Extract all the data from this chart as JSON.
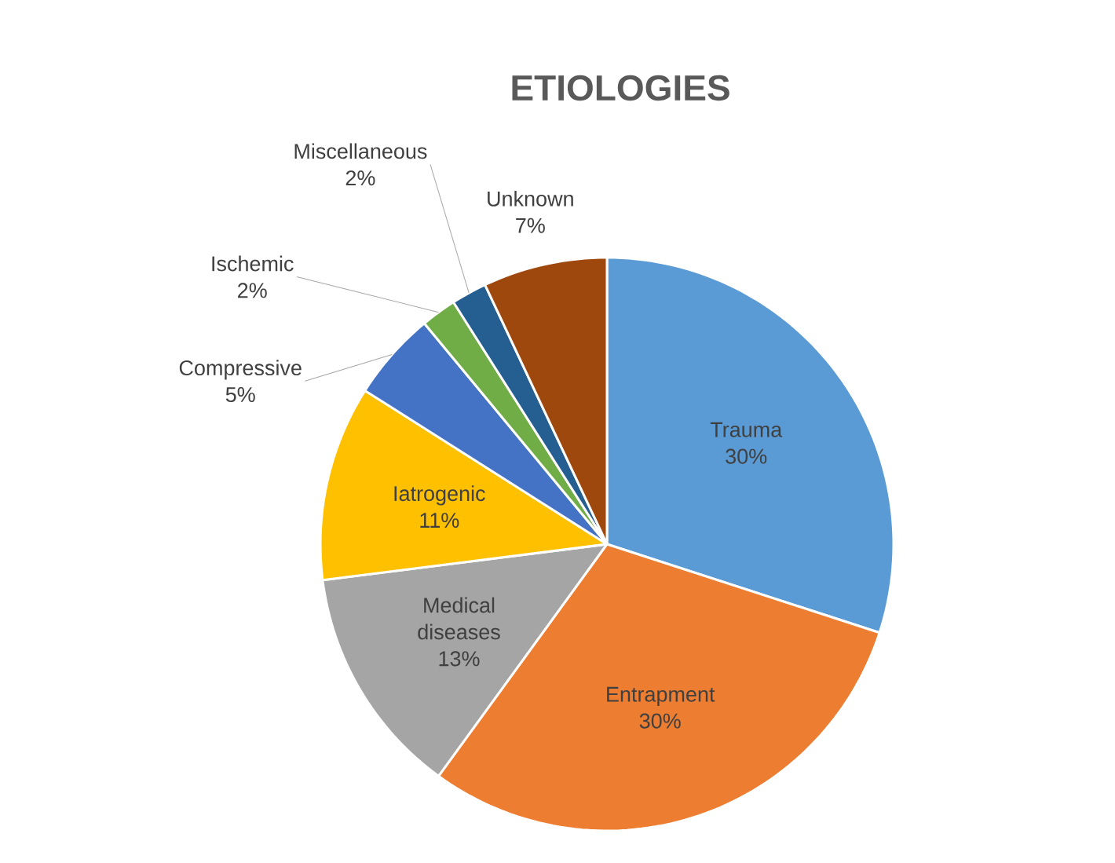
{
  "chart_data": {
    "type": "pie",
    "title": "ETIOLOGIES",
    "categories": [
      "Trauma",
      "Entrapment",
      "Medical diseases",
      "Iatrogenic",
      "Compressive",
      "Ischemic",
      "Miscellaneous",
      "Unknown"
    ],
    "values": [
      30,
      30,
      13,
      11,
      5,
      2,
      2,
      7
    ],
    "value_labels": [
      "30%",
      "30%",
      "13%",
      "11%",
      "5%",
      "2%",
      "2%",
      "7%"
    ],
    "colors": [
      "#5b9bd5",
      "#ed7d31",
      "#a5a5a5",
      "#ffc000",
      "#4472c4",
      "#70ad47",
      "#255e91",
      "#9e480e"
    ]
  }
}
